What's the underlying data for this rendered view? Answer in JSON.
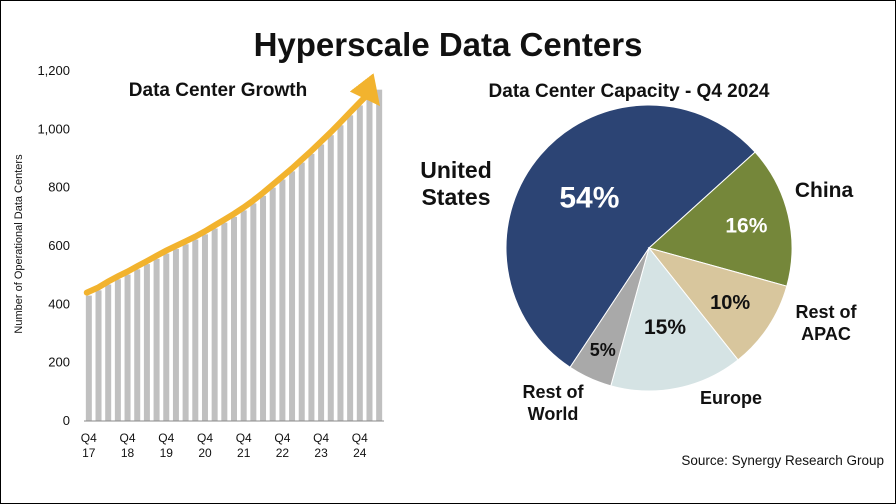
{
  "title": "Hyperscale Data Centers",
  "source": "Source: Synergy Research Group",
  "colors": {
    "bar": "#c0c0c0",
    "trend": "#f2b32e",
    "united_states": "#2c4474",
    "china": "#75873a",
    "rest_of_apac": "#d8c69d",
    "europe": "#d5e3e4",
    "rest_of_world": "#a9a9a9"
  },
  "chart_data": [
    {
      "type": "bar",
      "title": "Data Center Growth",
      "ylabel": "Number of Operational Data Centers",
      "ylim": [
        0,
        1200
      ],
      "yticks": [
        0,
        200,
        400,
        600,
        800,
        1000,
        1200
      ],
      "ytick_labels": [
        "0",
        "200",
        "400",
        "600",
        "800",
        "1,000",
        "1,200"
      ],
      "xtick_labels": [
        [
          "Q4",
          "17"
        ],
        [
          "Q4",
          "18"
        ],
        [
          "Q4",
          "19"
        ],
        [
          "Q4",
          "20"
        ],
        [
          "Q4",
          "21"
        ],
        [
          "Q4",
          "22"
        ],
        [
          "Q4",
          "23"
        ],
        [
          "Q4",
          "24"
        ]
      ],
      "values": [
        430,
        448,
        468,
        486,
        502,
        520,
        538,
        556,
        574,
        590,
        606,
        622,
        640,
        660,
        680,
        700,
        722,
        746,
        772,
        800,
        828,
        856,
        886,
        916,
        948,
        980,
        1014,
        1048,
        1082,
        1116,
        1136
      ],
      "trend": "arrow"
    },
    {
      "type": "pie",
      "title": "Data Center Capacity - Q4 2024",
      "slices": [
        {
          "name_lines": [
            "United",
            "States"
          ],
          "value": 54,
          "label": "54%",
          "color_key": "united_states"
        },
        {
          "name_lines": [
            "China"
          ],
          "value": 16,
          "label": "16%",
          "color_key": "china"
        },
        {
          "name_lines": [
            "Rest of",
            "APAC"
          ],
          "value": 10,
          "label": "10%",
          "color_key": "rest_of_apac"
        },
        {
          "name_lines": [
            "Europe"
          ],
          "value": 15,
          "label": "15%",
          "color_key": "europe"
        },
        {
          "name_lines": [
            "Rest of",
            "World"
          ],
          "value": 5,
          "label": "5%",
          "color_key": "rest_of_world"
        }
      ]
    }
  ]
}
